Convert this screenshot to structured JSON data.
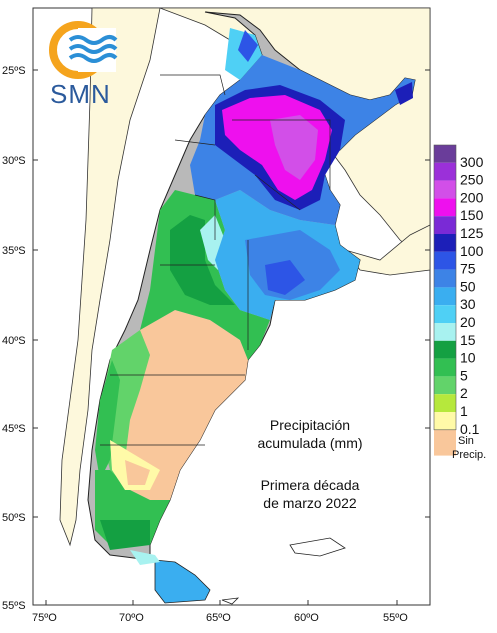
{
  "logo": {
    "text": "SMN"
  },
  "caption": {
    "line1": "Precipitación",
    "line2": "acumulada (mm)",
    "line3": "Primera década",
    "line4": "de marzo 2022"
  },
  "lat_labels": [
    "25ºS",
    "30ºS",
    "35ºS",
    "40ºS",
    "45ºS",
    "50ºS",
    "55ºS"
  ],
  "lon_labels": [
    "75ºO",
    "70ºO",
    "65ºO",
    "60ºO",
    "55ºO"
  ],
  "legend": {
    "items": [
      {
        "label": "300",
        "color": "#6a3d9a"
      },
      {
        "label": "250",
        "color": "#9b30d9"
      },
      {
        "label": "200",
        "color": "#d24fe8"
      },
      {
        "label": "150",
        "color": "#ee10ee"
      },
      {
        "label": "125",
        "color": "#7a2ad6"
      },
      {
        "label": "100",
        "color": "#1c1fb8"
      },
      {
        "label": "75",
        "color": "#2d55e6"
      },
      {
        "label": "50",
        "color": "#3d83e6"
      },
      {
        "label": "30",
        "color": "#3aaef0"
      },
      {
        "label": "20",
        "color": "#4fd0f5"
      },
      {
        "label": "15",
        "color": "#a8f2f0"
      },
      {
        "label": "10",
        "color": "#14a042"
      },
      {
        "label": "5",
        "color": "#32bf52"
      },
      {
        "label": "2",
        "color": "#62d36a"
      },
      {
        "label": "1",
        "color": "#b6e83c"
      },
      {
        "label": "0.1",
        "color": "#fffaa8"
      }
    ],
    "no_precip": {
      "label1": "Sin",
      "label2": "Precip.",
      "color": "#f9c79b"
    }
  },
  "colors": {
    "ocean": "#ffffff",
    "land_outside": "#fdf8dc",
    "andes_gray": "#b9b9b9",
    "border": "#222222",
    "logo_orange": "#f5a41d",
    "logo_blue": "#2b8fd6"
  }
}
